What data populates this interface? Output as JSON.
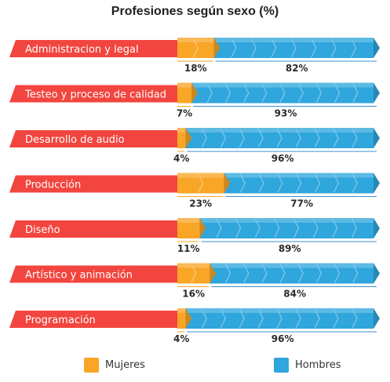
{
  "chart_data": {
    "type": "bar",
    "title": "Profesiones según sexo (%)",
    "categories": [
      "Administracion y legal",
      "Testeo y proceso de calidad",
      "Desarrollo de audio",
      "Producción",
      "Diseño",
      "Artístico y animación",
      "Programación"
    ],
    "series": [
      {
        "name": "Mujeres",
        "values": [
          18,
          7,
          4,
          23,
          11,
          16,
          4
        ],
        "labels": [
          "18%",
          "7%",
          "4%",
          "23%",
          "11%",
          "16%",
          "4%"
        ]
      },
      {
        "name": "Hombres",
        "values": [
          82,
          93,
          96,
          77,
          89,
          84,
          96
        ],
        "labels": [
          "82%",
          "93%",
          "96%",
          "77%",
          "89%",
          "84%",
          "96%"
        ]
      }
    ],
    "ylim": [
      0,
      100
    ],
    "legend_position": "bottom",
    "stacked": true
  },
  "colors": {
    "category_banner": "#f2453f",
    "mujeres": "#f9a526",
    "hombres": "#2fa6dc",
    "underline": "#3b8fd0"
  }
}
